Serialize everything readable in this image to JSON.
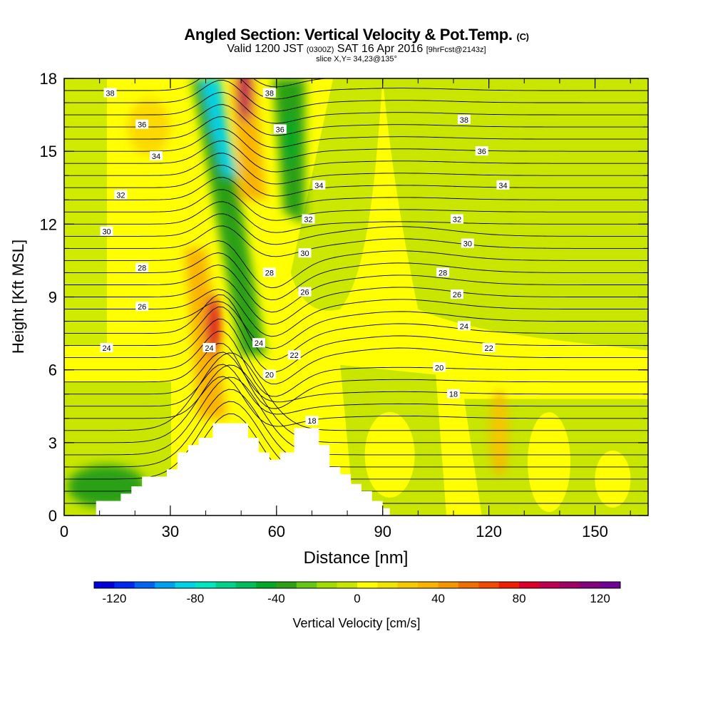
{
  "titles": {
    "line1": "Angled Section: Vertical Velocity & Pot.Temp.",
    "line1_unit": "(C)",
    "line2_a": "Valid 1200 JST",
    "line2_b": "(0300Z)",
    "line2_c": "SAT 16 Apr 2016",
    "line2_d": "[9hrFcst@2143z]",
    "line3": "slice X,Y= 34,23@135°"
  },
  "chart_data": {
    "type": "heatmap",
    "title": "Angled Section: Vertical Velocity & Pot.Temp.",
    "xlabel": "Distance [nm]",
    "ylabel": "Height [Kft MSL]",
    "xlim": [
      0,
      165
    ],
    "ylim": [
      0,
      18
    ],
    "x_ticks": [
      0,
      30,
      60,
      90,
      120,
      150
    ],
    "y_ticks": [
      0,
      3,
      6,
      9,
      12,
      15,
      18
    ],
    "colorbar": {
      "label": "Vertical Velocity [cm/s]",
      "tick_labels": [
        -120,
        -80,
        -40,
        0,
        40,
        80,
        120
      ],
      "min": -130,
      "max": 130,
      "colors": [
        "#0000d8",
        "#0028f0",
        "#0064f0",
        "#00a0f0",
        "#00d2e6",
        "#00e6be",
        "#00d28c",
        "#00be5a",
        "#00aa28",
        "#2ca014",
        "#64c814",
        "#a0dc00",
        "#c8e600",
        "#ffff00",
        "#f0e600",
        "#f5c800",
        "#fab400",
        "#f59600",
        "#f06e00",
        "#f04b00",
        "#f01e00",
        "#dc0028",
        "#be0050",
        "#a00064",
        "#82007c",
        "#6e0096"
      ]
    },
    "velocity_features": [
      {
        "x": 42,
        "y": 7.8,
        "w": 80,
        "label": "updraft"
      },
      {
        "x": 51,
        "y": 17.5,
        "w": 90,
        "label": "updraft"
      },
      {
        "x": 43,
        "y": 16.8,
        "w": -85,
        "label": "downdraft"
      },
      {
        "x": 64,
        "y": 15.5,
        "w": -45,
        "label": "downdraft"
      },
      {
        "x": 52,
        "y": 8.5,
        "w": -35,
        "label": "downdraft"
      },
      {
        "x": 123,
        "y": 3.5,
        "w": 25,
        "label": "updraft"
      }
    ],
    "theta_labels": [
      {
        "value": "38",
        "x": 13,
        "y": 17.4
      },
      {
        "value": "36",
        "x": 22,
        "y": 16.1
      },
      {
        "value": "34",
        "x": 26,
        "y": 14.8
      },
      {
        "value": "32",
        "x": 16,
        "y": 13.2
      },
      {
        "value": "30",
        "x": 12,
        "y": 11.7
      },
      {
        "value": "28",
        "x": 22,
        "y": 10.2
      },
      {
        "value": "26",
        "x": 22,
        "y": 8.6
      },
      {
        "value": "24",
        "x": 12,
        "y": 6.9
      },
      {
        "value": "24",
        "x": 41,
        "y": 6.9
      },
      {
        "value": "38",
        "x": 58,
        "y": 17.4
      },
      {
        "value": "36",
        "x": 61,
        "y": 15.9
      },
      {
        "value": "34",
        "x": 72,
        "y": 13.6
      },
      {
        "value": "32",
        "x": 69,
        "y": 12.2
      },
      {
        "value": "30",
        "x": 68,
        "y": 10.8
      },
      {
        "value": "28",
        "x": 58,
        "y": 10.0
      },
      {
        "value": "26",
        "x": 68,
        "y": 9.2
      },
      {
        "value": "24",
        "x": 55,
        "y": 7.1
      },
      {
        "value": "22",
        "x": 65,
        "y": 6.6
      },
      {
        "value": "20",
        "x": 58,
        "y": 5.8
      },
      {
        "value": "18",
        "x": 70,
        "y": 3.9
      },
      {
        "value": "38",
        "x": 113,
        "y": 16.3
      },
      {
        "value": "36",
        "x": 118,
        "y": 15.0
      },
      {
        "value": "34",
        "x": 124,
        "y": 13.6
      },
      {
        "value": "32",
        "x": 111,
        "y": 12.2
      },
      {
        "value": "30",
        "x": 114,
        "y": 11.2
      },
      {
        "value": "28",
        "x": 107,
        "y": 10.0
      },
      {
        "value": "26",
        "x": 111,
        "y": 9.1
      },
      {
        "value": "24",
        "x": 113,
        "y": 7.8
      },
      {
        "value": "22",
        "x": 120,
        "y": 6.9
      },
      {
        "value": "20",
        "x": 106,
        "y": 6.1
      },
      {
        "value": "18",
        "x": 110,
        "y": 5.0
      }
    ],
    "terrain_heights": [
      {
        "x": 0,
        "h": 0
      },
      {
        "x": 9,
        "h": 0.6
      },
      {
        "x": 13,
        "h": 0.6
      },
      {
        "x": 16,
        "h": 0.9
      },
      {
        "x": 19,
        "h": 1.2
      },
      {
        "x": 22,
        "h": 1.6
      },
      {
        "x": 26,
        "h": 1.6
      },
      {
        "x": 29,
        "h": 1.9
      },
      {
        "x": 32,
        "h": 2.6
      },
      {
        "x": 35,
        "h": 2.9
      },
      {
        "x": 38,
        "h": 3.2
      },
      {
        "x": 42,
        "h": 3.8
      },
      {
        "x": 48,
        "h": 3.8
      },
      {
        "x": 52,
        "h": 3.2
      },
      {
        "x": 55,
        "h": 2.6
      },
      {
        "x": 58,
        "h": 2.3
      },
      {
        "x": 61,
        "h": 2.6
      },
      {
        "x": 65,
        "h": 3.6
      },
      {
        "x": 71,
        "h": 3.6
      },
      {
        "x": 72,
        "h": 2.9
      },
      {
        "x": 75,
        "h": 2.0
      },
      {
        "x": 78,
        "h": 1.7
      },
      {
        "x": 81,
        "h": 1.3
      },
      {
        "x": 84,
        "h": 1.0
      },
      {
        "x": 87,
        "h": 0.6
      },
      {
        "x": 90,
        "h": 0.3
      },
      {
        "x": 92,
        "h": 0
      },
      {
        "x": 165,
        "h": 0
      }
    ]
  }
}
